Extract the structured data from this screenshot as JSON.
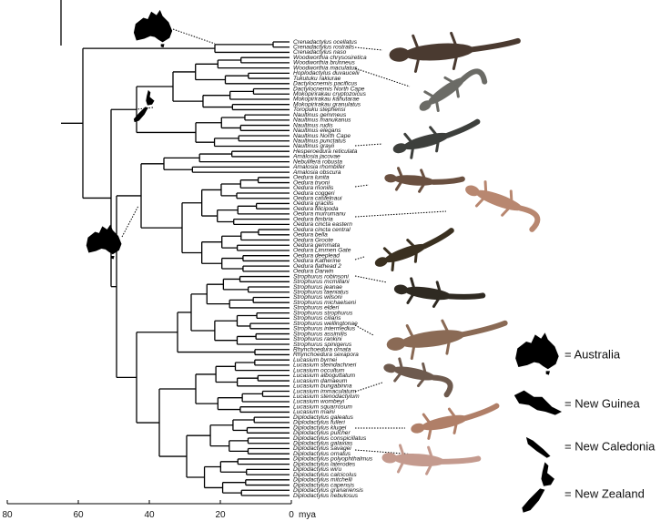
{
  "taxa": [
    "Crenadactylus ocellatus",
    "Crenadactylus rostralis",
    "Crenadactylus naso",
    "Woodworthia chrysosiretica",
    "Woodworthia brunneus",
    "Woodworthia maculatus",
    "Hoplodactylus duvaucelii",
    "Tukutuku rakiurae",
    "Dactylocnemis pacificus",
    "Dactylocnemis North Cape",
    "Mokopirirakau cryptozoicus",
    "Mokopirirakau kahutarae",
    "Mokopirirakau granulatus",
    "Toropuku stephensi",
    "Naultinus gemmeus",
    "Naultinus manukanus",
    "Naultinus rudis",
    "Naultinus elegans",
    "Naultinus North Cape",
    "Naultinus punctatus",
    "Naultinus grayii",
    "Hesperoedura reticulata",
    "Amalosia jacovae",
    "Nebulifera robusta",
    "Amalosia rhombifer",
    "Amalosia obscura",
    "Oedura lunita",
    "Oedura tryoni",
    "Oedura monilis",
    "Oedura coggeri",
    "Oedura castelnaui",
    "Oedura gracilis",
    "Oedura filicipoda",
    "Oedura murrumanu",
    "Oedura fimbria",
    "Oedura cincta eastern",
    "Oedura cincta central",
    "Oedura bella",
    "Oedura Groote",
    "Oedura gemmata",
    "Oedura Limmen Gate",
    "Oedura deeplead",
    "Oedura Katherine",
    "Oedura flathead 2",
    "Oedura Darwin",
    "Strophurus robinsoni",
    "Strophurus mcmillani",
    "Strophurus jeanae",
    "Strophurus taeniatus",
    "Strophurus wilsoni",
    "Strophurus michaelseni",
    "Strophurus elderi",
    "Strophurus strophurus",
    "Strophurus ciliaris",
    "Strophurus wellingtonae",
    "Strophurus intermedius",
    "Strophurus assimilis",
    "Strophurus rankini",
    "Strophurus spinigerus",
    "Rhynchoedura ornata",
    "Rhynchoedura sexapora",
    "Lucasium byrnei",
    "Lucasium steindachneri",
    "Lucasium occultum",
    "Lucasium alboguttatum",
    "Lucasium damaeum",
    "Lucasium bungabinna",
    "Lucasium immaculatum",
    "Lucasium stenodactylum",
    "Lucasium wombeyi",
    "Lucasium squarrosum",
    "Lucasium maini",
    "Diplodactylus galeatus",
    "Diplodactylus fulleri",
    "Diplodactylus klugei",
    "Diplodactylus pulcher",
    "Diplodactylus conspicillatus",
    "Diplodactylus galaxias",
    "Diplodactylus savagei",
    "Diplodactylus ornatus",
    "Diplodactylus polyophthalmus",
    "Diplodactylus laterodes",
    "Diplodactylus wiru",
    "Diplodactylus calcicolus",
    "Diplodactylus mitchelli",
    "Diplodactylus capensis",
    "Diplodactylus granariensis",
    "Diplodactylus nebulosus"
  ],
  "axis": {
    "ticks": [
      80,
      60,
      40,
      20,
      0
    ],
    "unit": "mya"
  },
  "legend": [
    "= Australia",
    "= New Guinea",
    "= New Caledonia",
    "= New Zealand"
  ]
}
